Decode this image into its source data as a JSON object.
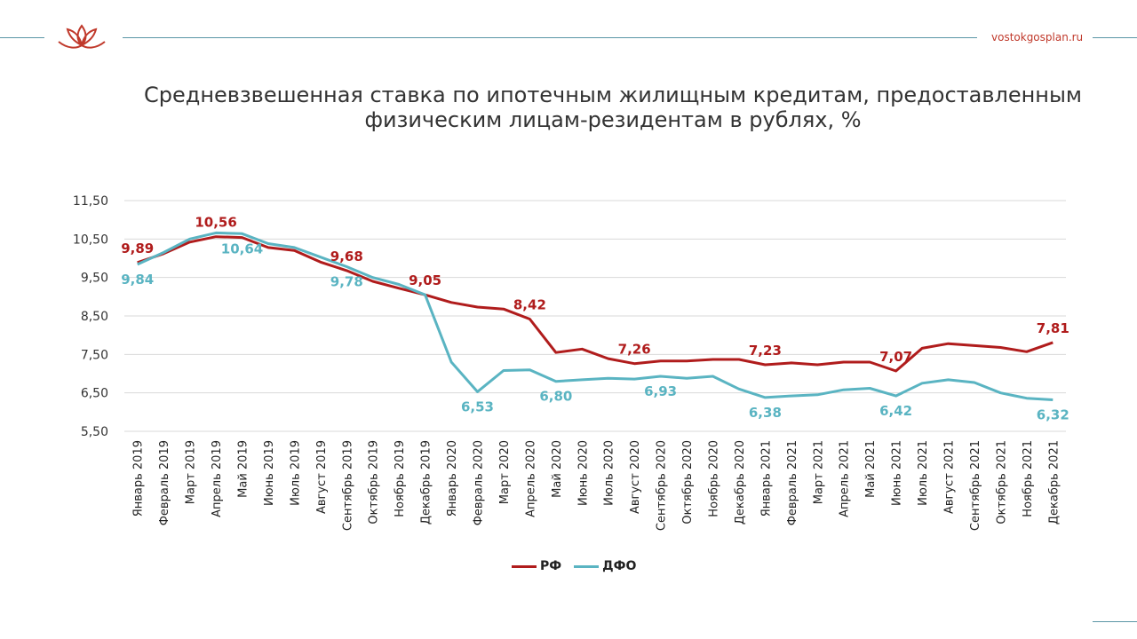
{
  "header": {
    "site": "vostokgosplan.ru"
  },
  "colors": {
    "rf": "#b01c1c",
    "dfo": "#5ab4c2",
    "line": "#5b96a6",
    "grid": "#d9d9d9"
  },
  "chart_data": {
    "type": "line",
    "title_lines": [
      "Средневзвешенная ставка по ипотечным жилищным кредитам, предоставленным",
      "физическим лицам-резидентам в рублях, %"
    ],
    "categories": [
      "Январь 2019",
      "Февраль 2019",
      "Март 2019",
      "Апрель 2019",
      "Май 2019",
      "Июнь 2019",
      "Июль 2019",
      "Август 2019",
      "Сентябрь 2019",
      "Октябрь 2019",
      "Ноябрь 2019",
      "Декабрь 2019",
      "Январь 2020",
      "Февраль 2020",
      "Март 2020",
      "Апрель 2020",
      "Май 2020",
      "Июнь 2020",
      "Июль 2020",
      "Август 2020",
      "Сентябрь 2020",
      "Октябрь 2020",
      "Ноябрь 2020",
      "Декабрь 2020",
      "Январь 2021",
      "Февраль 2021",
      "Март 2021",
      "Апрель 2021",
      "Май 2021",
      "Июнь 2021",
      "Июль 2021",
      "Август 2021",
      "Сентябрь 2021",
      "Октябрь 2021",
      "Ноябрь 2021",
      "Декабрь 2021"
    ],
    "yticks": [
      "5,50",
      "6,50",
      "7,50",
      "8,50",
      "9,50",
      "10,50",
      "11,50"
    ],
    "ylim": [
      5.5,
      11.5
    ],
    "grid": true,
    "legend_position": "bottom",
    "series": [
      {
        "name": "РФ",
        "color": "#b01c1c",
        "values": [
          9.89,
          10.12,
          10.42,
          10.56,
          10.54,
          10.28,
          10.2,
          9.9,
          9.68,
          9.4,
          9.22,
          9.05,
          8.85,
          8.73,
          8.68,
          8.42,
          7.55,
          7.64,
          7.39,
          7.26,
          7.33,
          7.33,
          7.37,
          7.37,
          7.23,
          7.28,
          7.23,
          7.3,
          7.3,
          7.07,
          7.66,
          7.78,
          7.73,
          7.68,
          7.57,
          7.81
        ],
        "labels": [
          {
            "index": 0,
            "text": "9,89",
            "pos": "above"
          },
          {
            "index": 3,
            "text": "10,56",
            "pos": "above"
          },
          {
            "index": 8,
            "text": "9,68",
            "pos": "above"
          },
          {
            "index": 11,
            "text": "9,05",
            "pos": "above"
          },
          {
            "index": 15,
            "text": "8,42",
            "pos": "above"
          },
          {
            "index": 19,
            "text": "7,26",
            "pos": "above"
          },
          {
            "index": 24,
            "text": "7,23",
            "pos": "above"
          },
          {
            "index": 29,
            "text": "7,07",
            "pos": "above"
          },
          {
            "index": 35,
            "text": "7,81",
            "pos": "above"
          }
        ]
      },
      {
        "name": "ДФО",
        "color": "#5ab4c2",
        "values": [
          9.84,
          10.15,
          10.5,
          10.66,
          10.64,
          10.38,
          10.28,
          10.03,
          9.78,
          9.5,
          9.32,
          9.05,
          7.3,
          6.53,
          7.08,
          7.1,
          6.8,
          6.84,
          6.88,
          6.86,
          6.93,
          6.88,
          6.93,
          6.6,
          6.38,
          6.42,
          6.45,
          6.58,
          6.62,
          6.42,
          6.75,
          6.84,
          6.77,
          6.5,
          6.36,
          6.32
        ],
        "labels": [
          {
            "index": 0,
            "text": "9,84",
            "pos": "below"
          },
          {
            "index": 4,
            "text": "10,64",
            "pos": "below"
          },
          {
            "index": 8,
            "text": "9,78",
            "pos": "below"
          },
          {
            "index": 13,
            "text": "6,53",
            "pos": "below"
          },
          {
            "index": 16,
            "text": "6,80",
            "pos": "below"
          },
          {
            "index": 20,
            "text": "6,93",
            "pos": "below"
          },
          {
            "index": 24,
            "text": "6,38",
            "pos": "below"
          },
          {
            "index": 29,
            "text": "6,42",
            "pos": "below"
          },
          {
            "index": 35,
            "text": "6,32",
            "pos": "below"
          }
        ]
      }
    ]
  }
}
